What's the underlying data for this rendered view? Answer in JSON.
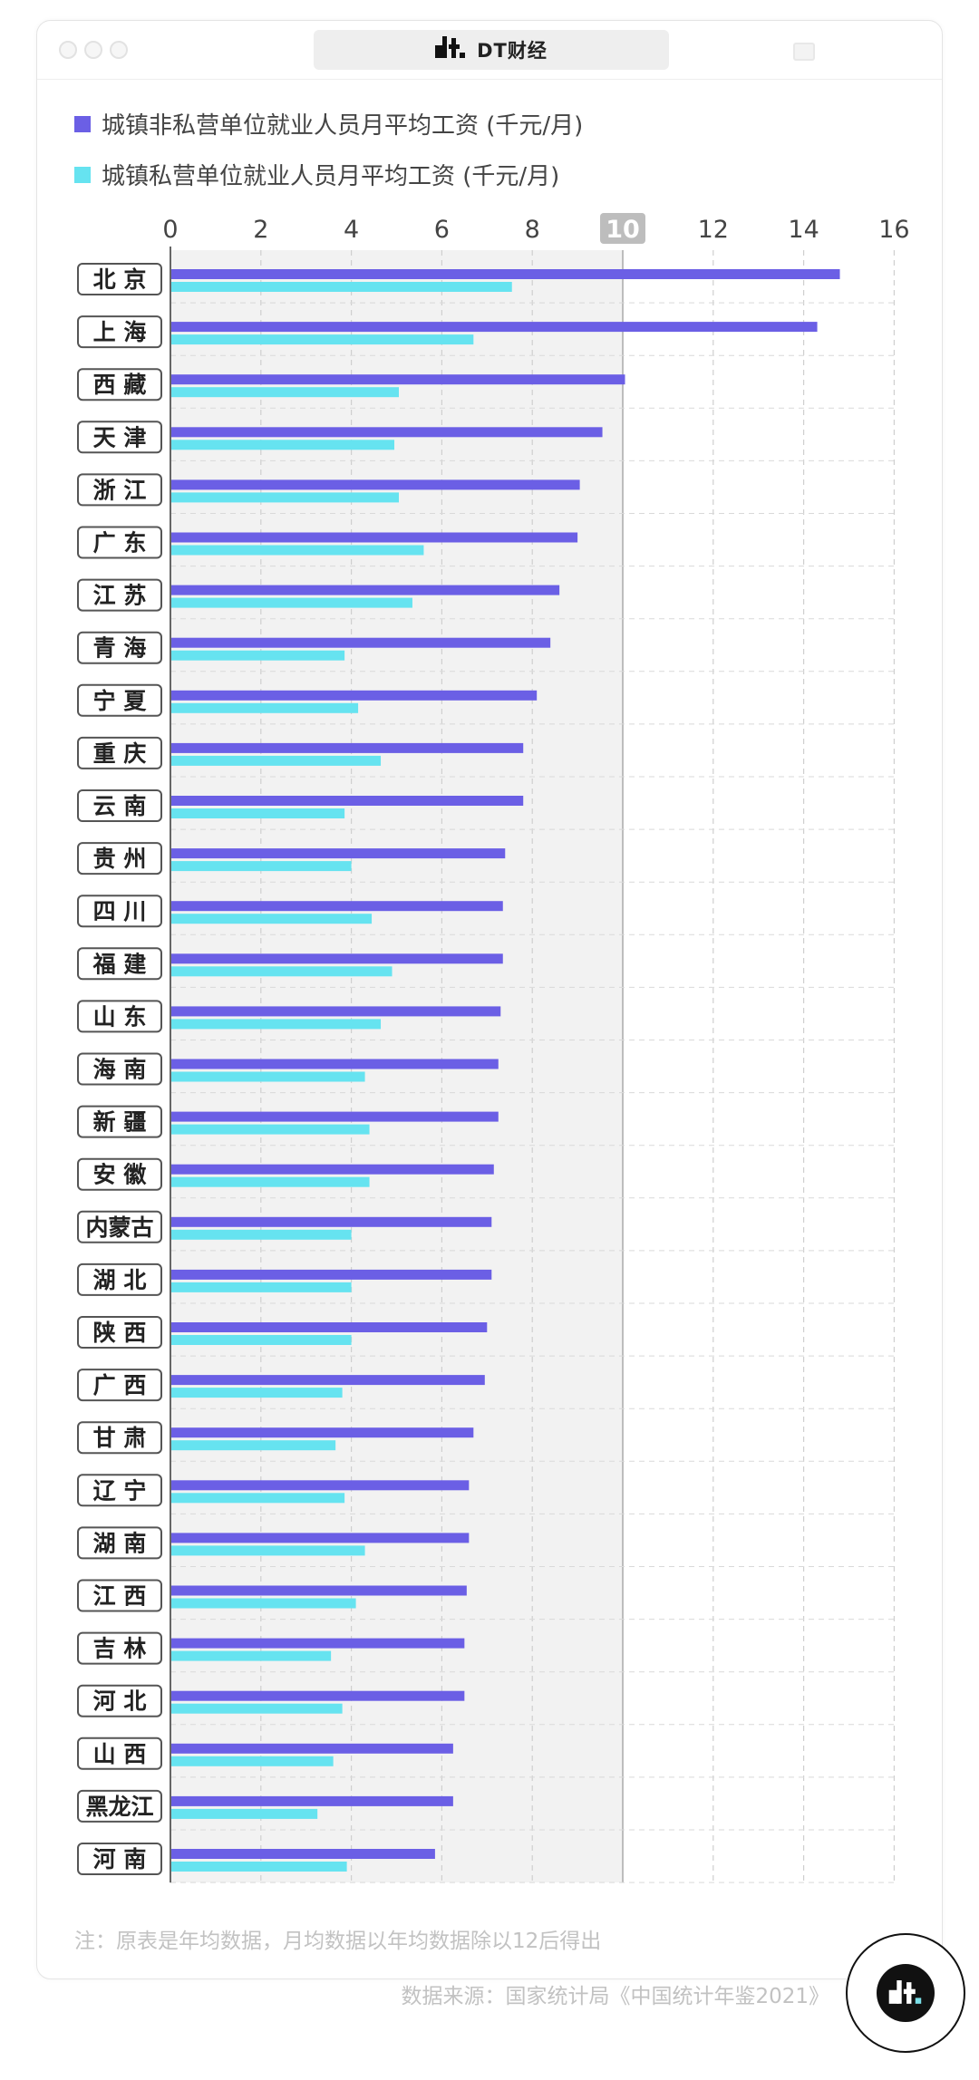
{
  "header": {
    "title": "DT财经"
  },
  "chart_data": {
    "type": "bar",
    "orientation": "horizontal",
    "categories": [
      "北京",
      "上海",
      "西藏",
      "天津",
      "浙江",
      "广东",
      "江苏",
      "青海",
      "宁夏",
      "重庆",
      "云南",
      "贵州",
      "四川",
      "福建",
      "山东",
      "海南",
      "新疆",
      "安徽",
      "内蒙古",
      "湖北",
      "陕西",
      "广西",
      "甘肃",
      "辽宁",
      "湖南",
      "江西",
      "吉林",
      "河北",
      "山西",
      "黑龙江",
      "河南"
    ],
    "series": [
      {
        "name": "城镇非私营单位就业人员月平均工资 (千元/月)",
        "color": "#6b5fe5",
        "values": [
          14.8,
          14.3,
          10.05,
          9.55,
          9.05,
          9.0,
          8.6,
          8.4,
          8.1,
          7.8,
          7.8,
          7.4,
          7.35,
          7.35,
          7.3,
          7.25,
          7.25,
          7.15,
          7.1,
          7.1,
          7.0,
          6.95,
          6.7,
          6.6,
          6.6,
          6.55,
          6.5,
          6.5,
          6.25,
          6.25,
          5.85
        ]
      },
      {
        "name": "城镇私营单位就业人员月平均工资 (千元/月)",
        "color": "#66e3f0",
        "values": [
          7.55,
          6.7,
          5.05,
          4.95,
          5.05,
          5.6,
          5.35,
          3.85,
          4.15,
          4.65,
          3.85,
          4.0,
          4.45,
          4.9,
          4.65,
          4.3,
          4.4,
          4.4,
          4.0,
          4.0,
          4.0,
          3.8,
          3.65,
          3.85,
          4.3,
          4.1,
          3.55,
          3.8,
          3.6,
          3.25,
          3.9
        ]
      }
    ],
    "xticks": [
      0,
      2,
      4,
      6,
      8,
      10,
      12,
      14,
      16
    ],
    "xlim": [
      0,
      16
    ],
    "highlight_tick": 10,
    "grid": true,
    "legend_position": "top-left",
    "note": "注：原表是年均数据，月均数据以年均数据除以12后得出",
    "source": "数据来源：国家统计局《中国统计年鉴2021》"
  },
  "colors": {
    "accent_purple": "#6b5fe5",
    "accent_cyan": "#66e3f0",
    "highlight_band": "#f2f2f2"
  }
}
